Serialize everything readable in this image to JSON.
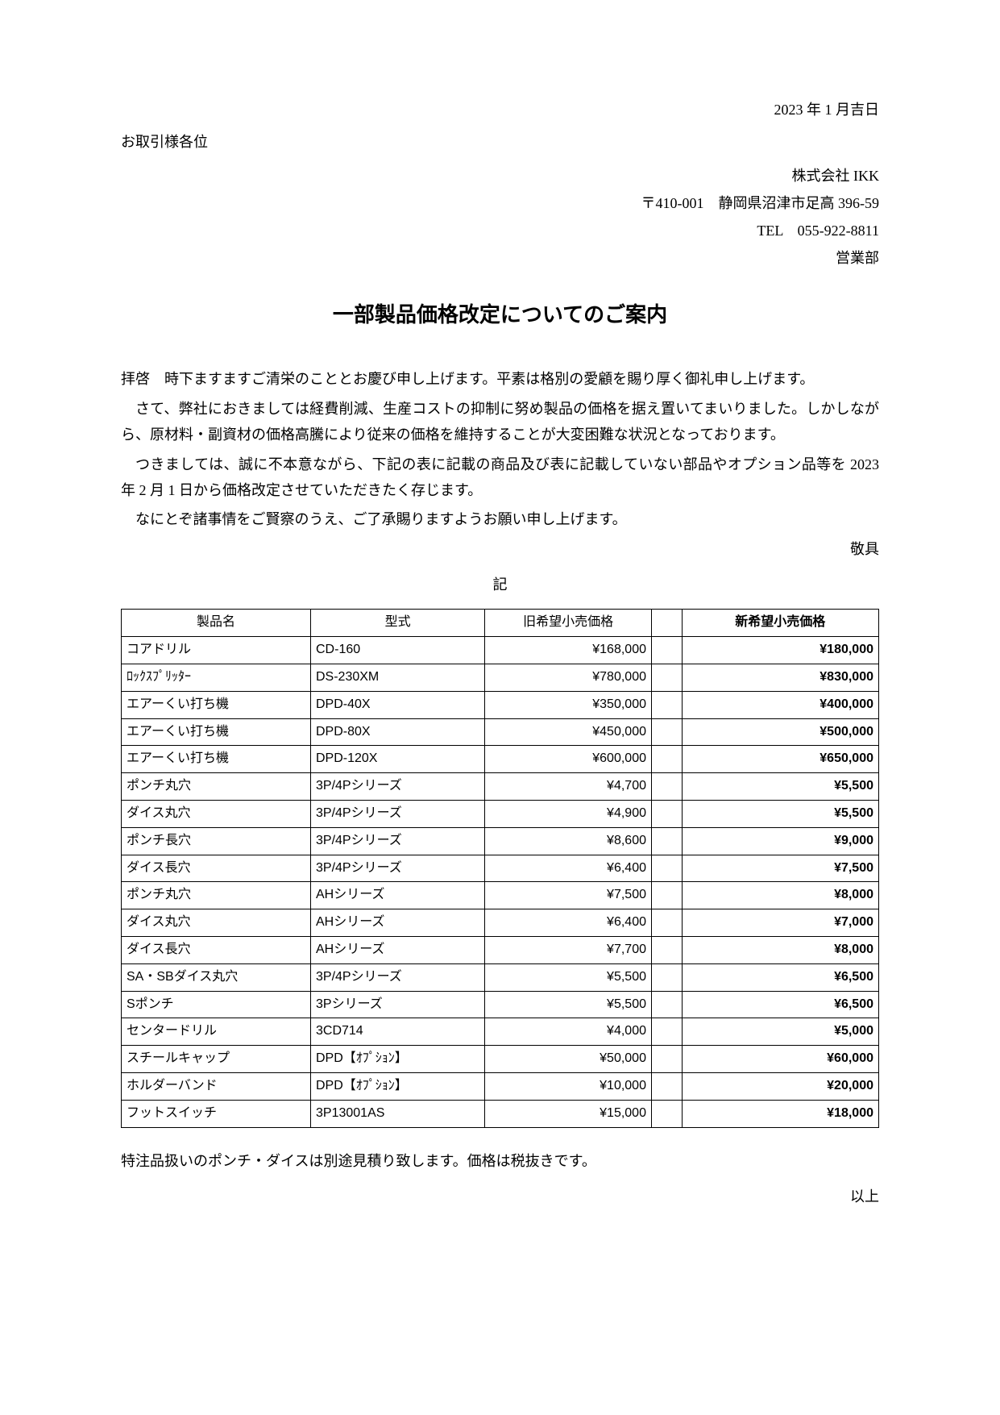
{
  "date": "2023 年 1 月吉日",
  "recipient": "お取引様各位",
  "sender": {
    "company": "株式会社 IKK",
    "address": "〒410-001　静岡県沼津市足高 396-59",
    "tel": "TEL　055-922-8811",
    "dept": "営業部"
  },
  "title": "一部製品価格改定についてのご案内",
  "paragraphs": {
    "p1": "拝啓　時下ますますご清栄のこととお慶び申し上げます。平素は格別の愛顧を賜り厚く御礼申し上げます。",
    "p2": "さて、弊社におきましては経費削減、生産コストの抑制に努め製品の価格を据え置いてまいりました。しかしながら、原材料・副資材の価格高騰により従来の価格を維持することが大変困難な状況となっております。",
    "p3": "つきましては、誠に不本意ながら、下記の表に記載の商品及び表に記載していない部品やオプション品等を 2023 年 2 月 1 日から価格改定させていただきたく存じます。",
    "p4": "なにとぞ諸事情をご賢察のうえ、ご了承賜りますようお願い申し上げます。"
  },
  "closing": "敬具",
  "ki": "記",
  "table": {
    "headers": {
      "name": "製品名",
      "model": "型式",
      "old_price": "旧希望小売価格",
      "new_price": "新希望小売価格"
    },
    "rows": [
      {
        "name": "コアドリル",
        "model": "CD-160",
        "old": "¥168,000",
        "new": "¥180,000"
      },
      {
        "name": "ﾛｯｸｽﾌﾟﾘｯﾀｰ",
        "model": "DS-230XM",
        "old": "¥780,000",
        "new": "¥830,000"
      },
      {
        "name": "エアーくい打ち機",
        "model": "DPD-40X",
        "old": "¥350,000",
        "new": "¥400,000"
      },
      {
        "name": "エアーくい打ち機",
        "model": "DPD-80X",
        "old": "¥450,000",
        "new": "¥500,000"
      },
      {
        "name": "エアーくい打ち機",
        "model": "DPD-120X",
        "old": "¥600,000",
        "new": "¥650,000"
      },
      {
        "name": "ポンチ丸穴",
        "model": "3P/4Pシリーズ",
        "old": "¥4,700",
        "new": "¥5,500"
      },
      {
        "name": "ダイス丸穴",
        "model": "3P/4Pシリーズ",
        "old": "¥4,900",
        "new": "¥5,500"
      },
      {
        "name": "ポンチ長穴",
        "model": "3P/4Pシリーズ",
        "old": "¥8,600",
        "new": "¥9,000"
      },
      {
        "name": "ダイス長穴",
        "model": "3P/4Pシリーズ",
        "old": "¥6,400",
        "new": "¥7,500"
      },
      {
        "name": "ポンチ丸穴",
        "model": "AHシリーズ",
        "old": "¥7,500",
        "new": "¥8,000"
      },
      {
        "name": "ダイス丸穴",
        "model": "AHシリーズ",
        "old": "¥6,400",
        "new": "¥7,000"
      },
      {
        "name": "ダイス長穴",
        "model": "AHシリーズ",
        "old": "¥7,700",
        "new": "¥8,000"
      },
      {
        "name": "SA・SBダイス丸穴",
        "model": "3P/4Pシリーズ",
        "old": "¥5,500",
        "new": "¥6,500"
      },
      {
        "name": "Sポンチ",
        "model": "3Pシリーズ",
        "old": "¥5,500",
        "new": "¥6,500"
      },
      {
        "name": "センタードリル",
        "model": "3CD714",
        "old": "¥4,000",
        "new": "¥5,000"
      },
      {
        "name": "スチールキャップ",
        "model": "DPD【ｵﾌﾟｼｮﾝ】",
        "old": "¥50,000",
        "new": "¥60,000"
      },
      {
        "name": "ホルダーバンド",
        "model": "DPD【ｵﾌﾟｼｮﾝ】",
        "old": "¥10,000",
        "new": "¥20,000"
      },
      {
        "name": "フットスイッチ",
        "model": "3P13001AS",
        "old": "¥15,000",
        "new": "¥18,000"
      }
    ]
  },
  "note": "特注品扱いのポンチ・ダイスは別途見積り致します。価格は税抜きです。",
  "ijou": "以上"
}
